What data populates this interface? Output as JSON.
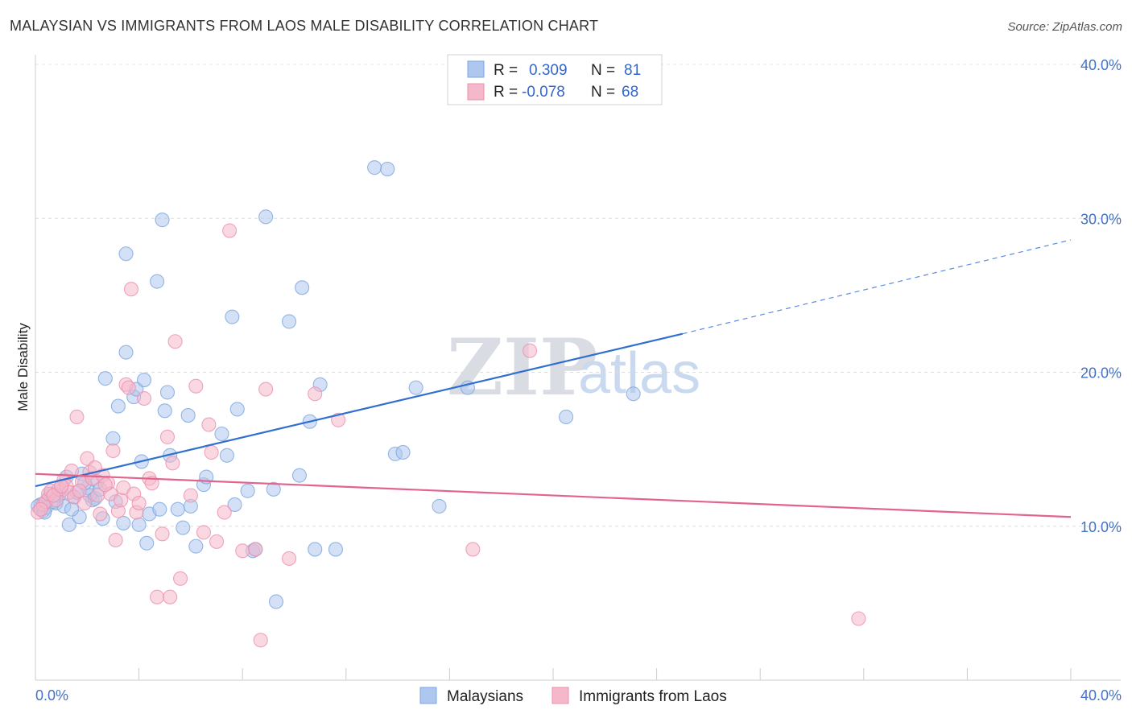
{
  "header": {
    "title": "MALAYSIAN VS IMMIGRANTS FROM LAOS MALE DISABILITY CORRELATION CHART",
    "source": "Source: ZipAtlas.com"
  },
  "watermark": {
    "part1": "ZIP",
    "part2": "atlas"
  },
  "legend_box": {
    "rows": [
      {
        "r_label": "R =",
        "r_value": "0.309",
        "n_label": "N =",
        "n_value": "81",
        "color": "#aec7ef"
      },
      {
        "r_label": "R =",
        "r_value": "-0.078",
        "n_label": "N =",
        "n_value": "68",
        "color": "#f5b8ca"
      }
    ]
  },
  "bottom_legend": {
    "items": [
      {
        "label": "Malaysians",
        "color": "#aec7ef"
      },
      {
        "label": "Immigrants from Laos",
        "color": "#f5b8ca"
      }
    ]
  },
  "chart_data": {
    "type": "scatter",
    "title": "MALAYSIAN VS IMMIGRANTS FROM LAOS MALE DISABILITY CORRELATION CHART",
    "xlabel": "",
    "ylabel": "Male Disability",
    "xlim": [
      0,
      40
    ],
    "ylim": [
      0,
      40
    ],
    "x_tick_labels": [
      "0.0%",
      "40.0%"
    ],
    "y_ticks": [
      10,
      20,
      30,
      40
    ],
    "y_tick_labels": [
      "10.0%",
      "20.0%",
      "30.0%",
      "40.0%"
    ],
    "grid": "horizontal dashed",
    "legend_position": "top-center",
    "series": [
      {
        "name": "Malaysians",
        "color": "#7aa6e0",
        "fill": "#aec7ef",
        "trend": {
          "x0": 0,
          "y0": 12.6,
          "x1": 25,
          "y1": 22.5,
          "dash_to_x": 40,
          "dash_to_y": 28.6,
          "color": "#2f6fcf"
        },
        "points": [
          [
            0.2,
            11.4
          ],
          [
            0.3,
            11.0
          ],
          [
            0.5,
            11.8
          ],
          [
            0.6,
            12.1
          ],
          [
            0.8,
            11.5
          ],
          [
            1.0,
            12.3
          ],
          [
            1.2,
            13.2
          ],
          [
            1.3,
            10.1
          ],
          [
            1.5,
            11.9
          ],
          [
            1.7,
            10.6
          ],
          [
            1.8,
            13.4
          ],
          [
            2.0,
            12.5
          ],
          [
            2.2,
            11.7
          ],
          [
            2.4,
            12.9
          ],
          [
            2.6,
            10.5
          ],
          [
            2.7,
            19.6
          ],
          [
            3.0,
            15.7
          ],
          [
            3.1,
            11.6
          ],
          [
            3.2,
            17.8
          ],
          [
            3.4,
            10.2
          ],
          [
            3.5,
            21.3
          ],
          [
            3.5,
            27.7
          ],
          [
            3.8,
            18.4
          ],
          [
            3.9,
            18.9
          ],
          [
            4.0,
            10.1
          ],
          [
            4.1,
            14.2
          ],
          [
            4.2,
            19.5
          ],
          [
            4.3,
            8.9
          ],
          [
            4.4,
            10.8
          ],
          [
            4.7,
            25.9
          ],
          [
            4.8,
            11.1
          ],
          [
            4.9,
            29.9
          ],
          [
            5.0,
            17.5
          ],
          [
            5.1,
            18.7
          ],
          [
            5.2,
            14.6
          ],
          [
            5.5,
            11.1
          ],
          [
            5.7,
            9.9
          ],
          [
            5.9,
            17.2
          ],
          [
            6.0,
            11.3
          ],
          [
            6.2,
            8.7
          ],
          [
            6.5,
            12.7
          ],
          [
            6.6,
            13.2
          ],
          [
            7.2,
            16.0
          ],
          [
            7.4,
            14.6
          ],
          [
            7.6,
            23.6
          ],
          [
            7.7,
            11.4
          ],
          [
            7.8,
            17.6
          ],
          [
            8.2,
            12.3
          ],
          [
            8.4,
            8.4
          ],
          [
            8.5,
            8.5
          ],
          [
            8.9,
            30.1
          ],
          [
            9.2,
            12.4
          ],
          [
            9.3,
            5.1
          ],
          [
            9.8,
            23.3
          ],
          [
            10.2,
            13.3
          ],
          [
            10.3,
            25.5
          ],
          [
            10.6,
            16.8
          ],
          [
            10.8,
            8.5
          ],
          [
            11.0,
            19.2
          ],
          [
            11.6,
            8.5
          ],
          [
            13.1,
            33.3
          ],
          [
            13.6,
            33.2
          ],
          [
            13.9,
            14.7
          ],
          [
            14.2,
            14.8
          ],
          [
            14.7,
            19.0
          ],
          [
            15.6,
            11.3
          ],
          [
            16.7,
            19.0
          ],
          [
            20.5,
            17.1
          ],
          [
            23.1,
            18.6
          ],
          [
            0.4,
            11.2
          ],
          [
            0.9,
            12.0
          ],
          [
            1.1,
            11.3
          ],
          [
            1.4,
            11.1
          ],
          [
            1.6,
            12.2
          ],
          [
            2.1,
            12.0
          ],
          [
            2.3,
            11.8
          ],
          [
            2.5,
            12.4
          ],
          [
            0.7,
            11.6
          ],
          [
            0.1,
            11.3
          ],
          [
            0.35,
            10.9
          ],
          [
            1.9,
            12.8
          ]
        ]
      },
      {
        "name": "Immigrants from Laos",
        "color": "#ec8fae",
        "fill": "#f5b8ca",
        "trend": {
          "x0": 0,
          "y0": 13.4,
          "x1": 40,
          "y1": 10.6,
          "color": "#e2648e"
        },
        "points": [
          [
            0.1,
            10.9
          ],
          [
            0.3,
            11.4
          ],
          [
            0.4,
            11.6
          ],
          [
            0.5,
            12.1
          ],
          [
            0.6,
            12.3
          ],
          [
            0.8,
            11.7
          ],
          [
            0.9,
            12.4
          ],
          [
            1.1,
            13.0
          ],
          [
            1.2,
            12.6
          ],
          [
            1.3,
            12.2
          ],
          [
            1.4,
            13.6
          ],
          [
            1.5,
            11.9
          ],
          [
            1.6,
            17.1
          ],
          [
            1.8,
            12.9
          ],
          [
            1.9,
            11.5
          ],
          [
            2.0,
            14.4
          ],
          [
            2.1,
            13.5
          ],
          [
            2.2,
            13.1
          ],
          [
            2.4,
            12.0
          ],
          [
            2.5,
            10.8
          ],
          [
            2.6,
            13.3
          ],
          [
            2.8,
            12.8
          ],
          [
            2.9,
            12.1
          ],
          [
            3.0,
            14.9
          ],
          [
            3.1,
            9.1
          ],
          [
            3.2,
            11.0
          ],
          [
            3.3,
            11.7
          ],
          [
            3.4,
            12.5
          ],
          [
            3.5,
            19.2
          ],
          [
            3.6,
            19.0
          ],
          [
            3.7,
            25.4
          ],
          [
            3.8,
            12.1
          ],
          [
            3.9,
            10.9
          ],
          [
            4.0,
            11.5
          ],
          [
            4.2,
            18.3
          ],
          [
            4.4,
            13.1
          ],
          [
            4.5,
            12.8
          ],
          [
            4.7,
            5.4
          ],
          [
            4.9,
            9.5
          ],
          [
            5.1,
            15.8
          ],
          [
            5.2,
            5.4
          ],
          [
            5.3,
            14.1
          ],
          [
            5.4,
            22.0
          ],
          [
            5.6,
            6.6
          ],
          [
            6.0,
            12.0
          ],
          [
            6.2,
            19.1
          ],
          [
            6.5,
            9.6
          ],
          [
            6.7,
            16.6
          ],
          [
            6.8,
            14.8
          ],
          [
            7.0,
            9.0
          ],
          [
            7.3,
            10.9
          ],
          [
            7.5,
            29.2
          ],
          [
            8.0,
            8.4
          ],
          [
            8.5,
            8.5
          ],
          [
            8.7,
            2.6
          ],
          [
            8.9,
            18.9
          ],
          [
            9.8,
            7.9
          ],
          [
            10.8,
            18.6
          ],
          [
            11.7,
            16.9
          ],
          [
            16.9,
            8.5
          ],
          [
            19.1,
            21.4
          ],
          [
            31.8,
            4.0
          ],
          [
            0.2,
            11.1
          ],
          [
            0.7,
            12.0
          ],
          [
            1.0,
            12.6
          ],
          [
            1.7,
            12.3
          ],
          [
            2.3,
            13.8
          ],
          [
            2.7,
            12.7
          ]
        ]
      }
    ]
  }
}
